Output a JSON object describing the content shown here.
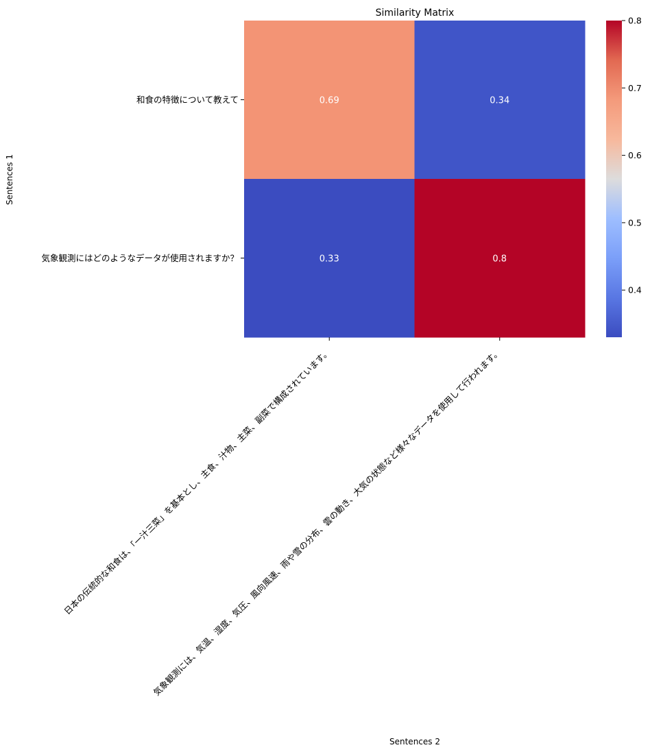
{
  "chart_data": {
    "type": "heatmap",
    "title": "Similarity Matrix",
    "xlabel": "Sentences 2",
    "ylabel": "Sentences 1",
    "rows": [
      "和食の特徴について教えて",
      "気象観測にはどのようなデータが使用されますか？"
    ],
    "columns": [
      "日本の伝統的な和食は、「一汁三菜」を基本とし、主食、汁物、主菜、副菜で構成されています。",
      "気象観測には、気温、湿度、気圧、風向風速、雨や雪の分布、雲の動き、大気の状態など様々なデータを使用して行われます。"
    ],
    "values": [
      [
        0.69,
        0.34
      ],
      [
        0.33,
        0.8
      ]
    ],
    "value_labels": [
      [
        "0.69",
        "0.34"
      ],
      [
        "0.33",
        "0.8"
      ]
    ],
    "colormap": "coolwarm",
    "colorbar": {
      "range": [
        0.33,
        0.8
      ],
      "ticks": [
        0.4,
        0.5,
        0.6,
        0.7,
        0.8
      ],
      "tick_labels": [
        "0.4",
        "0.5",
        "0.6",
        "0.7",
        "0.8"
      ]
    },
    "cell_colors": [
      [
        "#f39475",
        "#4055c8"
      ],
      [
        "#3b4cc0",
        "#b40426"
      ]
    ],
    "annotation_color": "#ffffff",
    "grid": false
  }
}
